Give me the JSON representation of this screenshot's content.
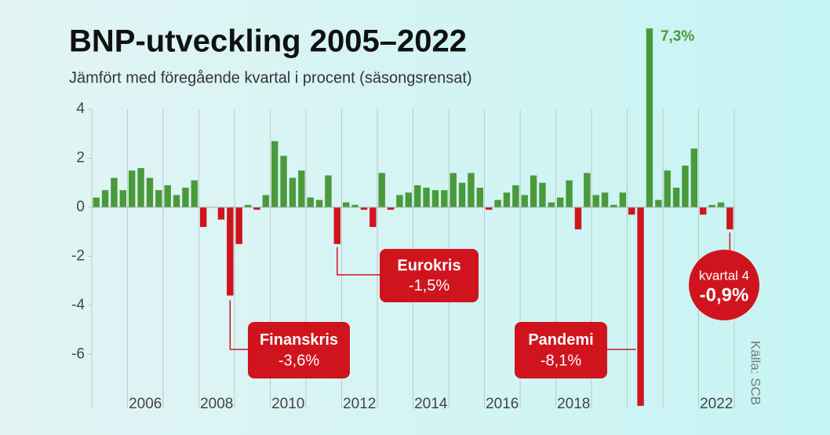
{
  "chart_data": {
    "type": "bar",
    "title": "BNP-utveckling 2005–2022",
    "subtitle": "Jämfört med föregående kvartal i procent (säsongsrensat)",
    "x": [
      2005,
      2005.25,
      2005.5,
      2005.75,
      2006,
      2006.25,
      2006.5,
      2006.75,
      2007,
      2007.25,
      2007.5,
      2007.75,
      2008,
      2008.25,
      2008.5,
      2008.75,
      2009,
      2009.25,
      2009.5,
      2009.75,
      2010,
      2010.25,
      2010.5,
      2010.75,
      2011,
      2011.25,
      2011.5,
      2011.75,
      2012,
      2012.25,
      2012.5,
      2012.75,
      2013,
      2013.25,
      2013.5,
      2013.75,
      2014,
      2014.25,
      2014.5,
      2014.75,
      2015,
      2015.25,
      2015.5,
      2015.75,
      2016,
      2016.25,
      2016.5,
      2016.75,
      2017,
      2017.25,
      2017.5,
      2017.75,
      2018,
      2018.25,
      2018.5,
      2018.75,
      2019,
      2019.25,
      2019.5,
      2019.75,
      2020,
      2020.25,
      2020.5,
      2020.75,
      2021,
      2021.25,
      2021.5,
      2021.75,
      2022,
      2022.25,
      2022.5,
      2022.75
    ],
    "values": [
      0.4,
      0.7,
      1.2,
      0.7,
      1.5,
      1.6,
      1.2,
      0.7,
      0.9,
      0.5,
      0.8,
      1.1,
      -0.8,
      0.0,
      -0.5,
      -3.6,
      -1.5,
      0.1,
      -0.1,
      0.5,
      2.7,
      2.1,
      1.2,
      1.5,
      0.4,
      0.3,
      1.3,
      -1.5,
      0.2,
      0.1,
      -0.1,
      -0.8,
      1.4,
      -0.1,
      0.5,
      0.6,
      0.9,
      0.8,
      0.7,
      0.7,
      1.4,
      1.0,
      1.4,
      0.8,
      -0.1,
      0.3,
      0.6,
      0.9,
      0.5,
      1.3,
      1.0,
      0.2,
      0.4,
      1.1,
      -0.9,
      1.4,
      0.5,
      0.6,
      0.1,
      0.6,
      -0.3,
      -8.1,
      7.3,
      0.3,
      1.5,
      0.8,
      1.7,
      2.4,
      -0.3,
      0.1,
      0.2,
      -0.9
    ],
    "colors": {
      "positive": "#4a9a3b",
      "negative": "#d0141e"
    },
    "xlim": [
      2005,
      2023
    ],
    "xticks": [
      {
        "value": 2006.5,
        "label": "2006"
      },
      {
        "value": 2008.5,
        "label": "2008"
      },
      {
        "value": 2010.5,
        "label": "2010"
      },
      {
        "value": 2012.5,
        "label": "2012"
      },
      {
        "value": 2014.5,
        "label": "2014"
      },
      {
        "value": 2016.5,
        "label": "2016"
      },
      {
        "value": 2018.5,
        "label": "2018"
      },
      {
        "value": 2022.5,
        "label": "2022"
      }
    ],
    "xgrid_ticks": [
      2005,
      2006,
      2007,
      2008,
      2009,
      2010,
      2011,
      2012,
      2013,
      2014,
      2015,
      2016,
      2017,
      2018,
      2019,
      2020,
      2021,
      2022,
      2023
    ],
    "ylim": [
      -8.2,
      7.4
    ],
    "yticks": [
      4,
      2,
      0,
      -2,
      -4,
      -6
    ],
    "peak_label": {
      "index": 62,
      "label": "7,3%"
    },
    "annotations": [
      {
        "index": 15,
        "text": "Finanskris",
        "value_label": "-3,6%"
      },
      {
        "index": 27,
        "text": "Eurokris",
        "value_label": "-1,5%"
      },
      {
        "index": 61,
        "text": "Pandemi",
        "value_label": "-8,1%"
      },
      {
        "index": 71,
        "text": "kvartal 4",
        "value_label": "-0,9%"
      }
    ],
    "source": "Källa: SCB"
  }
}
